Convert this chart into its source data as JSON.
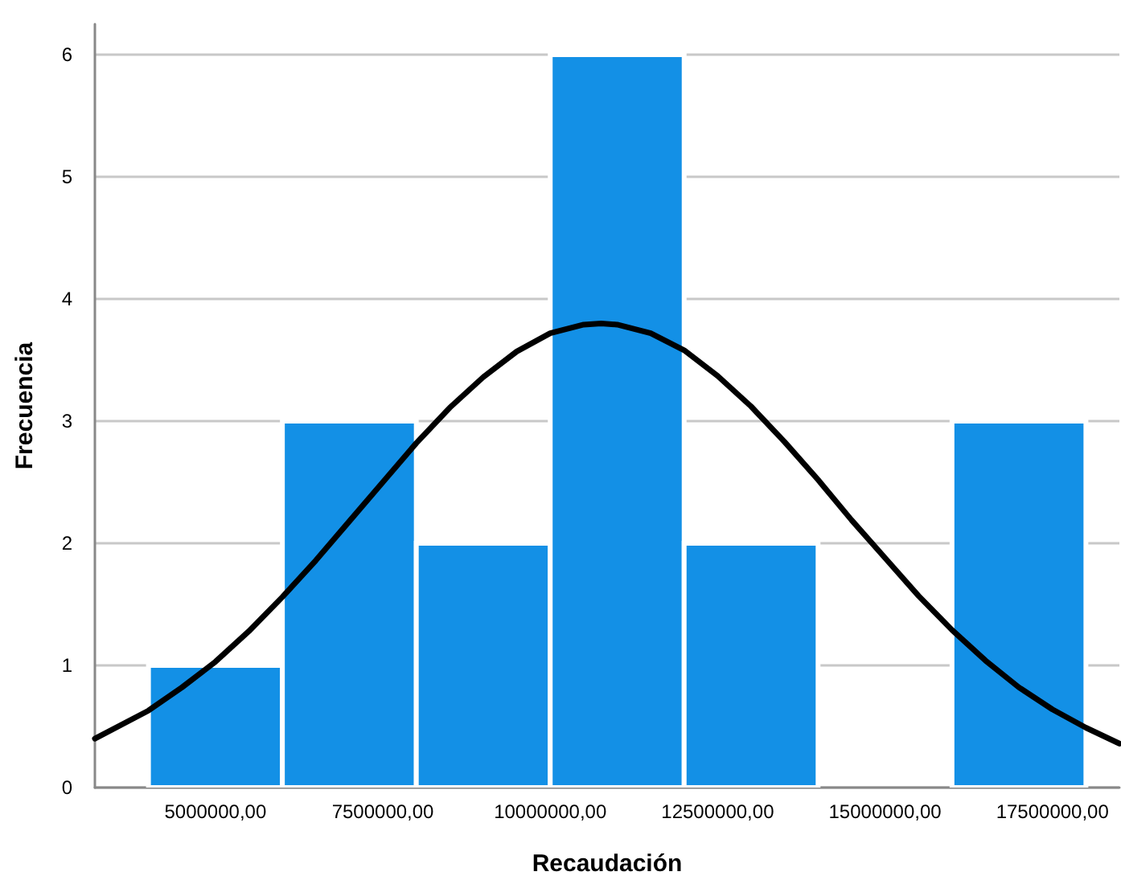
{
  "chart_data": {
    "type": "histogram",
    "xlabel": "Recaudación",
    "ylabel": "Frecuencia",
    "series": [
      {
        "color": "#1390e6",
        "bins": [
          4000000,
          6000000,
          8000000,
          10000000,
          12000000,
          14000000,
          16000000,
          18000000
        ],
        "values": [
          1,
          3,
          2,
          6,
          2,
          0,
          3
        ]
      },
      {
        "type": "line",
        "color": "#000000",
        "x": [
          3200000,
          4000000,
          4500000,
          5000000,
          5500000,
          6000000,
          6500000,
          7000000,
          7500000,
          8000000,
          8500000,
          9000000,
          9500000,
          10000000,
          10500000,
          10760000,
          11000000,
          11500000,
          12000000,
          12500000,
          13000000,
          13500000,
          14000000,
          14500000,
          15000000,
          15500000,
          16000000,
          16500000,
          17000000,
          17500000,
          18000000,
          18500000
        ],
        "values": [
          0.4,
          0.63,
          0.82,
          1.03,
          1.28,
          1.56,
          1.86,
          2.18,
          2.5,
          2.82,
          3.11,
          3.36,
          3.57,
          3.72,
          3.79,
          3.8,
          3.79,
          3.72,
          3.58,
          3.37,
          3.12,
          2.83,
          2.52,
          2.19,
          1.88,
          1.57,
          1.29,
          1.04,
          0.82,
          0.64,
          0.49,
          0.36
        ]
      }
    ],
    "xlim": [
      3200000,
      18500000
    ],
    "xticks": [
      {
        "value": 5000000,
        "label": "5000000,00"
      },
      {
        "value": 7500000,
        "label": "7500000,00"
      },
      {
        "value": 10000000,
        "label": "10000000,00"
      },
      {
        "value": 12500000,
        "label": "12500000,00"
      },
      {
        "value": 15000000,
        "label": "15000000,00"
      },
      {
        "value": 17500000,
        "label": "17500000,00"
      }
    ],
    "ylim": [
      0,
      6.25
    ],
    "yticks": [
      0,
      1,
      2,
      3,
      4,
      5,
      6
    ],
    "grid": "y",
    "marker": "none",
    "line_style": "solid"
  }
}
